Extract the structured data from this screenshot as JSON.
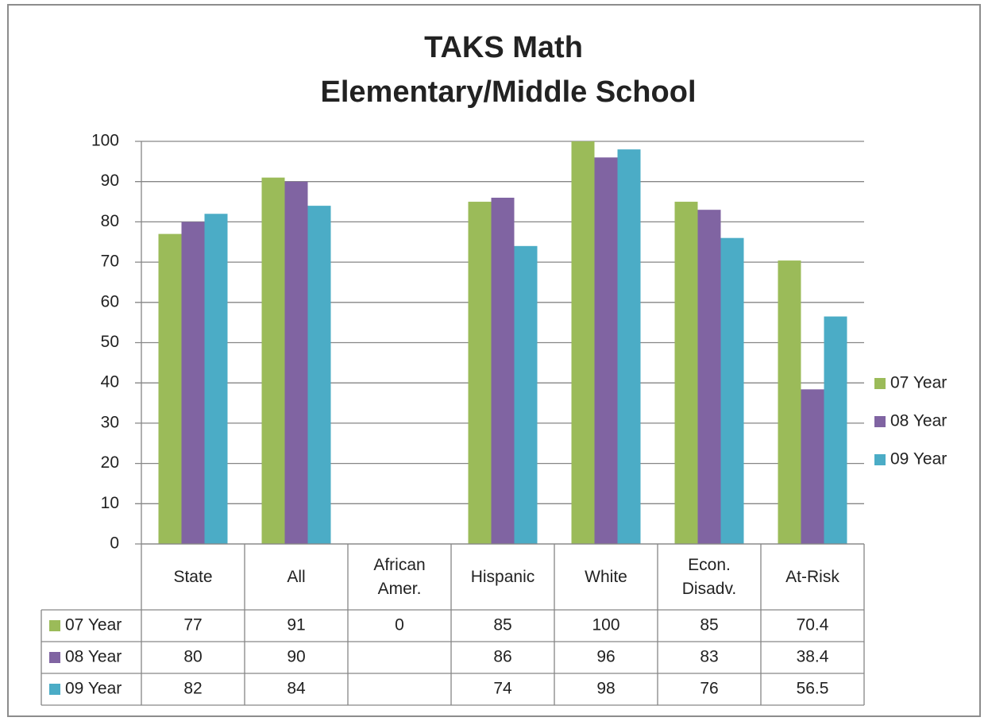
{
  "chart_data": {
    "type": "bar",
    "title": "TAKS Math",
    "subtitle": "Elementary/Middle School",
    "categories": [
      "State",
      "All",
      "African Amer.",
      "Hispanic",
      "White",
      "Econ. Disadv.",
      "At-Risk"
    ],
    "series": [
      {
        "name": "07 Year",
        "color": "#9bbb59",
        "values": [
          77,
          91,
          0,
          85,
          100,
          85,
          70.4
        ]
      },
      {
        "name": "08 Year",
        "color": "#8064a2",
        "values": [
          80,
          90,
          null,
          86,
          96,
          83,
          38.4
        ]
      },
      {
        "name": "09 Year",
        "color": "#4bacc6",
        "values": [
          82,
          84,
          null,
          74,
          98,
          76,
          56.5
        ]
      }
    ],
    "ylim": [
      0,
      100
    ],
    "yticks": [
      0,
      10,
      20,
      30,
      40,
      50,
      60,
      70,
      80,
      90,
      100
    ],
    "grid": true,
    "legend": "right",
    "data_table": true
  }
}
